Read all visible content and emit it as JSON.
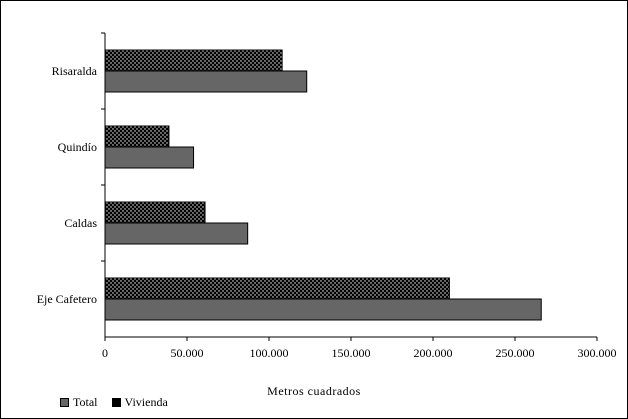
{
  "chart_data": {
    "type": "bar",
    "orientation": "horizontal",
    "categories": [
      "Eje Cafetero",
      "Caldas",
      "Quindío",
      "Risaralda"
    ],
    "series": [
      {
        "name": "Total",
        "values": [
          266000,
          87000,
          54000,
          123000
        ],
        "color": "#666666",
        "pattern": "solid"
      },
      {
        "name": "Vivienda",
        "values": [
          210000,
          61000,
          39000,
          108000
        ],
        "color": "#000000",
        "pattern": "dots"
      }
    ],
    "xlabel": "Metros cuadrados",
    "ylabel": "",
    "xlim": [
      0,
      300000
    ],
    "xticks": [
      "0",
      "50.000",
      "100.000",
      "150.000",
      "200.000",
      "250.000",
      "300.000"
    ],
    "grid": false,
    "legend_position": "bottom-left"
  }
}
